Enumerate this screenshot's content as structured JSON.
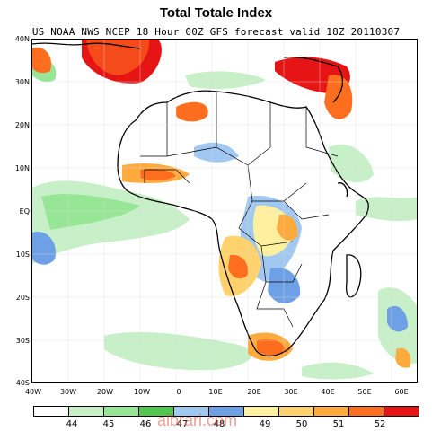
{
  "title": "Total Totale Index",
  "subtitle": "US NOAA NWS NCEP 18 Hour 00Z GFS forecast valid 18Z 20110307",
  "lat_labels": [
    "40N",
    "30N",
    "20N",
    "10N",
    "EQ",
    "10S",
    "20S",
    "30S",
    "40S"
  ],
  "lon_labels": [
    "40W",
    "30W",
    "20W",
    "10W",
    "0",
    "10E",
    "20E",
    "30E",
    "40E",
    "50E",
    "60E"
  ],
  "colorbar": {
    "labels": [
      "44",
      "45",
      "46",
      "47",
      "48",
      "49",
      "50",
      "51",
      "52"
    ],
    "colors": [
      "#ffffff",
      "#c8f0c8",
      "#96e696",
      "#50c850",
      "#a0c8f0",
      "#6ea0e6",
      "#fff0a0",
      "#ffd26e",
      "#ffaa3c",
      "#ff6e1e",
      "#e61414"
    ]
  },
  "watermark": "albrari.com"
}
